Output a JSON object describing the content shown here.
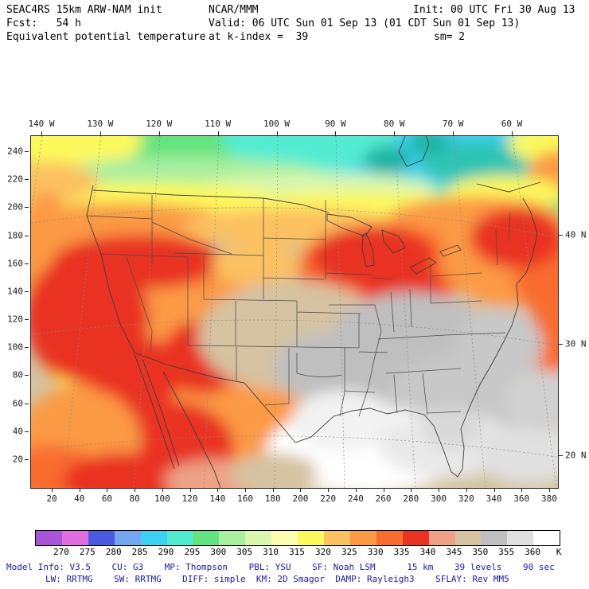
{
  "header": {
    "line1_left": "SEAC4RS 15km ARW-NAM init",
    "line1_center": "NCAR/MMM",
    "line1_right": "Init: 00 UTC Fri 30 Aug 13",
    "line2_left": "Fcst:   54 h",
    "line2_center": "Valid: 06 UTC Sun 01 Sep 13 (01 CDT Sun 01 Sep 13)",
    "line3_left": "Equivalent potential temperature",
    "line3_center": "at k-index =  39",
    "line3_right": "sm= 2"
  },
  "axes": {
    "top_longitude": [
      "140 W",
      "130 W",
      "120 W",
      "110 W",
      "100 W",
      "90 W",
      "80 W",
      "70 W",
      "60 W"
    ],
    "right_latitude": [
      "40 N",
      "30 N",
      "20 N"
    ],
    "left_grid": [
      "240",
      "220",
      "200",
      "180",
      "160",
      "140",
      "120",
      "100",
      "80",
      "60",
      "40",
      "20"
    ],
    "bottom_grid": [
      "20",
      "40",
      "60",
      "80",
      "100",
      "120",
      "140",
      "160",
      "180",
      "200",
      "220",
      "240",
      "260",
      "280",
      "300",
      "320",
      "340",
      "360",
      "380"
    ]
  },
  "colorbar": {
    "boundary_labels": [
      "270",
      "275",
      "280",
      "285",
      "290",
      "295",
      "300",
      "305",
      "310",
      "315",
      "320",
      "325",
      "330",
      "335",
      "340",
      "345",
      "350",
      "355",
      "360",
      "K"
    ],
    "segment_colors": [
      "#a855d8",
      "#e06ee0",
      "#4a5ae0",
      "#74a6f4",
      "#3cd2f0",
      "#52ecd2",
      "#63e37f",
      "#a9efa0",
      "#d9f7ae",
      "#fdfdb0",
      "#fcf95d",
      "#fcc161",
      "#fb9a44",
      "#f96c2f",
      "#e93323",
      "#eda285",
      "#d5c3a1",
      "#bfbfbf",
      "#e0e0e0",
      "#ffffff"
    ],
    "unit_label": "K"
  },
  "footer": {
    "line1": "Model Info: V3.5    CU: G3    MP: Thompson    PBL: YSU    SF: Noah LSM      15 km    39 levels    90 sec",
    "line2": "LW: RRTMG    SW: RRTMG    DIFF: simple  KM: 2D Smagor  DAMP: Rayleigh3    SFLAY: Rev MM5"
  },
  "colors": {
    "header_blue": "#1616c8",
    "footer_blue": "#1a1aa6",
    "text_black": "#000000"
  },
  "chart_data": {
    "type": "heatmap",
    "title": "Equivalent potential temperature at k-index = 39",
    "units": "K",
    "model": "SEAC4RS 15km ARW-NAM init",
    "center": "NCAR/MMM",
    "init_time": "00 UTC Fri 30 Aug 13",
    "valid_time": "06 UTC Sun 01 Sep 13 (01 CDT Sun 01 Sep 13)",
    "forecast_hour": 54,
    "smoothing": 2,
    "contour_levels": [
      270,
      275,
      280,
      285,
      290,
      295,
      300,
      305,
      310,
      315,
      320,
      325,
      330,
      335,
      340,
      345,
      350,
      355,
      360
    ],
    "palette": [
      "#a855d8",
      "#e06ee0",
      "#4a5ae0",
      "#74a6f4",
      "#3cd2f0",
      "#52ecd2",
      "#63e37f",
      "#a9efa0",
      "#d9f7ae",
      "#fdfdb0",
      "#fcf95d",
      "#fcc161",
      "#fb9a44",
      "#f96c2f",
      "#e93323",
      "#eda285",
      "#d5c3a1",
      "#bfbfbf",
      "#e0e0e0",
      "#ffffff"
    ],
    "map_extent": {
      "longitude_ticks": [
        "140 W",
        "130 W",
        "120 W",
        "110 W",
        "100 W",
        "90 W",
        "80 W",
        "70 W",
        "60 W"
      ],
      "latitude_ticks": [
        "40 N",
        "30 N",
        "20 N"
      ]
    },
    "field_summary": [
      {
        "area": "northern Canada / Hudson Bay",
        "theta_e_K": "285-300 (cyan-green)"
      },
      {
        "area": "southern Canada band",
        "theta_e_K": "305-320 (pale green to yellow)"
      },
      {
        "area": "Pacific NW / Montana / Great Lakes / Northeast US",
        "theta_e_K": "330-340 (orange-red)"
      },
      {
        "area": "California / Great Basin / Four Corners",
        "theta_e_K": "335-340 (red)"
      },
      {
        "area": "central plains",
        "theta_e_K": "340-350 (salmon-tan)"
      },
      {
        "area": "southeast US and lower Mississippi valley",
        "theta_e_K": "350-360 (gray)"
      },
      {
        "area": "Gulf of Mexico / south Texas coast",
        "theta_e_K": ">360 (white)"
      },
      {
        "area": "west Mexico coast / subtropical Pacific",
        "theta_e_K": "330-340 (orange-red)"
      }
    ]
  }
}
